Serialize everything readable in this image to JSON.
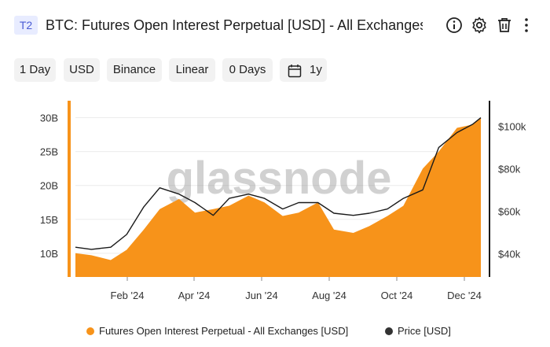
{
  "header": {
    "badge": "T2",
    "title": "BTC: Futures Open Interest Perpetual [USD] - All Exchanges",
    "icons": [
      "info-icon",
      "gear-icon",
      "trash-icon",
      "more-vertical-icon"
    ]
  },
  "controls": {
    "resolution": "1 Day",
    "currency": "USD",
    "exchange": "Binance",
    "scale": "Linear",
    "moving_average": "0 Days",
    "range": "1y"
  },
  "watermark": "glassnode",
  "colors": {
    "oi": "#f7931a",
    "price": "#1a1a1a",
    "badge_bg": "#e8ecff",
    "badge_text": "#4a5bd4",
    "chip_bg": "#f2f2f2"
  },
  "legend": {
    "oi_label": "Futures Open Interest Perpetual - All Exchanges [USD]",
    "price_label": "Price [USD]"
  },
  "chart_data": {
    "type": "area",
    "x_ticks": [
      "Feb '24",
      "Apr '24",
      "Jun '24",
      "Aug '24",
      "Oct '24",
      "Dec '24"
    ],
    "y_left_ticks": [
      "10B",
      "15B",
      "20B",
      "25B",
      "30B"
    ],
    "y_left_tick_values": [
      10,
      15,
      20,
      25,
      30
    ],
    "y_left_range": [
      6.5,
      32.5
    ],
    "y_right_ticks": [
      "$40k",
      "$60k",
      "$80k",
      "$100k"
    ],
    "y_right_tick_values": [
      40,
      60,
      80,
      100
    ],
    "y_right_range": [
      29,
      112
    ],
    "x": [
      "2024-01-01",
      "2024-01-15",
      "2024-02-01",
      "2024-02-15",
      "2024-03-01",
      "2024-03-15",
      "2024-04-01",
      "2024-04-15",
      "2024-05-01",
      "2024-05-15",
      "2024-06-01",
      "2024-06-15",
      "2024-07-01",
      "2024-07-15",
      "2024-08-01",
      "2024-08-15",
      "2024-09-01",
      "2024-09-15",
      "2024-10-01",
      "2024-10-15",
      "2024-11-01",
      "2024-11-15",
      "2024-12-01",
      "2024-12-15",
      "2024-12-22"
    ],
    "series": [
      {
        "name": "Futures Open Interest Perpetual - All Exchanges [USD]",
        "unit": "B",
        "values": [
          10.0,
          9.7,
          9.0,
          10.5,
          13.5,
          16.5,
          18.0,
          16.0,
          16.5,
          17.0,
          18.5,
          17.5,
          15.5,
          16.0,
          17.5,
          13.5,
          13.0,
          14.0,
          15.5,
          17.0,
          22.5,
          25.0,
          28.5,
          29.0,
          30.0
        ]
      },
      {
        "name": "Price [USD]",
        "unit": "k",
        "values": [
          43,
          42,
          43,
          49,
          62,
          71,
          68,
          64,
          58,
          66,
          68,
          66,
          61,
          64,
          64,
          59,
          58,
          59,
          61,
          66,
          70,
          90,
          97,
          101,
          104
        ]
      }
    ]
  }
}
